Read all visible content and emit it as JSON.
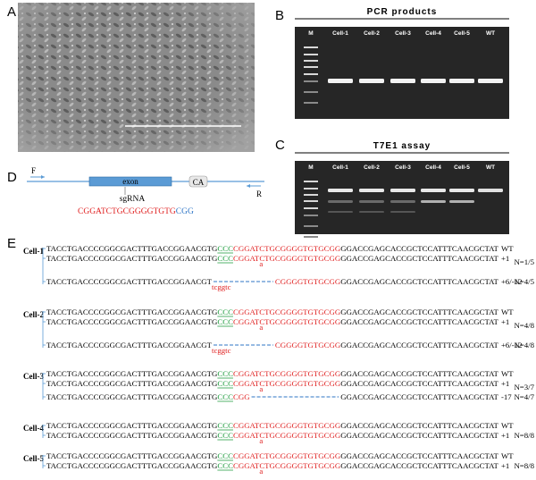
{
  "panels": {
    "a": "A",
    "b": "B",
    "c": "C",
    "d": "D",
    "e": "E"
  },
  "gel_b": {
    "title": "PCR products",
    "lanes": [
      "M",
      "Cell-1",
      "Cell-2",
      "Cell-3",
      "Cell-4",
      "Cell-5",
      "WT"
    ]
  },
  "gel_c": {
    "title": "T7E1 assay",
    "lanes": [
      "M",
      "Cell-1",
      "Cell-2",
      "Cell-3",
      "Cell-4",
      "Cell-5",
      "WT"
    ]
  },
  "diagram": {
    "forward": "F",
    "reverse": "R",
    "exon": "exon",
    "ca": "CA",
    "sgrna": "sgRNA",
    "target": "CGGATCTGCGGGGTGTG",
    "pam": "CGG"
  },
  "groups": [
    {
      "name": "Cell-1",
      "rows": [
        {
          "parts": [
            {
              "text": "TACCTGACCCCGGCGACTTTGACCGGAACGTG",
              "style": "plain"
            },
            {
              "text": "CCC",
              "style": "pam"
            },
            {
              "text": "CGGATCTGCGGGGTGTGCGG",
              "style": "target"
            },
            {
              "text": "GGACCGAGCACCGCTCCATTTCAACGCTAT",
              "style": "plain"
            }
          ],
          "genotype": "WT"
        },
        {
          "parts": [
            {
              "text": "TACCTGACCCCGGCGACTTTGACCGGAACGTG",
              "style": "plain"
            },
            {
              "text": "CCC",
              "style": "pam"
            },
            {
              "text": "CGGAT",
              "style": "target"
            },
            {
              "text": "a",
              "style": "ins"
            },
            {
              "text": "CTGCGGGGTGTGCGG",
              "style": "target"
            },
            {
              "text": "GGACCGAGCACCGCTCCATTTCAACGCTAT",
              "style": "plain"
            }
          ],
          "genotype": "+1",
          "count": "N=1/5"
        },
        {
          "parts": [
            {
              "text": "TACCTGACCCCGGCGACTTTGACCGGAACGT",
              "style": "plain"
            },
            {
              "text": "tcggtc",
              "style": "ins"
            },
            {
              "style": "gap"
            },
            {
              "text": "CGGGGTGTGCGG",
              "style": "target"
            },
            {
              "text": "GGACCGAGCACCGCTCCATTTCAACGCTAT",
              "style": "plain"
            }
          ],
          "genotype": "+6/-12",
          "count": "N=4/5"
        }
      ]
    },
    {
      "name": "Cell-2",
      "rows": [
        {
          "parts": [
            {
              "text": "TACCTGACCCCGGCGACTTTGACCGGAACGTG",
              "style": "plain"
            },
            {
              "text": "CCC",
              "style": "pam"
            },
            {
              "text": "CGGATCTGCGGGGTGTGCGG",
              "style": "target"
            },
            {
              "text": "GGACCGAGCACCGCTCCATTTCAACGCTAT",
              "style": "plain"
            }
          ],
          "genotype": "WT"
        },
        {
          "parts": [
            {
              "text": "TACCTGACCCCGGCGACTTTGACCGGAACGTG",
              "style": "plain"
            },
            {
              "text": "CCC",
              "style": "pam"
            },
            {
              "text": "CGGAT",
              "style": "target"
            },
            {
              "text": "a",
              "style": "ins"
            },
            {
              "text": "CTGCGGGGTGTGCGG",
              "style": "target"
            },
            {
              "text": "GGACCGAGCACCGCTCCATTTCAACGCTAT",
              "style": "plain"
            }
          ],
          "genotype": "+1",
          "count": "N=4/8"
        },
        {
          "parts": [
            {
              "text": "TACCTGACCCCGGCGACTTTGACCGGAACGT",
              "style": "plain"
            },
            {
              "text": "tcggtc",
              "style": "ins"
            },
            {
              "style": "gap"
            },
            {
              "text": "CGGGGTGTGCGG",
              "style": "target"
            },
            {
              "text": "GGACCGAGCACCGCTCCATTTCAACGCTAT",
              "style": "plain"
            }
          ],
          "genotype": "+6/-12",
          "count": "N=4/8"
        }
      ]
    },
    {
      "name": "Cell-3",
      "rows": [
        {
          "parts": [
            {
              "text": "TACCTGACCCCGGCGACTTTGACCGGAACGTG",
              "style": "plain"
            },
            {
              "text": "CCC",
              "style": "pam"
            },
            {
              "text": "CGGATCTGCGGGGTGTGCGG",
              "style": "target"
            },
            {
              "text": "GGACCGAGCACCGCTCCATTTCAACGCTAT",
              "style": "plain"
            }
          ],
          "genotype": "WT"
        },
        {
          "parts": [
            {
              "text": "TACCTGACCCCGGCGACTTTGACCGGAACGTG",
              "style": "plain"
            },
            {
              "text": "CCC",
              "style": "pam"
            },
            {
              "text": "CGGAT",
              "style": "target"
            },
            {
              "text": "a",
              "style": "ins"
            },
            {
              "text": "CTGCGGGGTGTGCGG",
              "style": "target"
            },
            {
              "text": "GGACCGAGCACCGCTCCATTTCAACGCTAT",
              "style": "plain"
            }
          ],
          "genotype": "+1",
          "count": "N=3/7"
        },
        {
          "parts": [
            {
              "text": "TACCTGACCCCGGCGACTTTGACCGGAACGTG",
              "style": "plain"
            },
            {
              "text": "CCC",
              "style": "pam"
            },
            {
              "text": "CGG",
              "style": "target"
            },
            {
              "style": "gap"
            },
            {
              "text": "GGACCGAGCACCGCTCCATTTCAACGCTAT",
              "style": "plain"
            }
          ],
          "genotype": "-17",
          "count": "N=4/7"
        }
      ]
    },
    {
      "name": "Cell-4",
      "rows": [
        {
          "parts": [
            {
              "text": "TACCTGACCCCGGCGACTTTGACCGGAACGTG",
              "style": "plain"
            },
            {
              "text": "CCC",
              "style": "pam"
            },
            {
              "text": "CGGATCTGCGGGGTGTGCGG",
              "style": "target"
            },
            {
              "text": "GGACCGAGCACCGCTCCATTTCAACGCTAT",
              "style": "plain"
            }
          ],
          "genotype": "WT"
        },
        {
          "parts": [
            {
              "text": "TACCTGACCCCGGCGACTTTGACCGGAACGTG",
              "style": "plain"
            },
            {
              "text": "CCC",
              "style": "pam"
            },
            {
              "text": "CGGAT",
              "style": "target"
            },
            {
              "text": "a",
              "style": "ins"
            },
            {
              "text": "CTGCGGGGTGTGCGG",
              "style": "target"
            },
            {
              "text": "GGACCGAGCACCGCTCCATTTCAACGCTAT",
              "style": "plain"
            }
          ],
          "genotype": "+1",
          "count": "N=8/8"
        }
      ]
    },
    {
      "name": "Cell-5",
      "rows": [
        {
          "parts": [
            {
              "text": "TACCTGACCCCGGCGACTTTGACCGGAACGTG",
              "style": "plain"
            },
            {
              "text": "CCC",
              "style": "pam"
            },
            {
              "text": "CGGATCTGCGGGGTGTGCGG",
              "style": "target"
            },
            {
              "text": "GGACCGAGCACCGCTCCATTTCAACGCTAT",
              "style": "plain"
            }
          ],
          "genotype": "WT"
        },
        {
          "parts": [
            {
              "text": "TACCTGACCCCGGCGACTTTGACCGGAACGTG",
              "style": "plain"
            },
            {
              "text": "CCC",
              "style": "pam"
            },
            {
              "text": "CGGAT",
              "style": "target"
            },
            {
              "text": "a",
              "style": "ins"
            },
            {
              "text": "CTGCGGGGTGTGCGG",
              "style": "target"
            },
            {
              "text": "GGACCGAGCACCGCTCCATTTCAACGCTAT",
              "style": "plain"
            }
          ],
          "genotype": "+1",
          "count": "N=8/8"
        }
      ]
    }
  ]
}
